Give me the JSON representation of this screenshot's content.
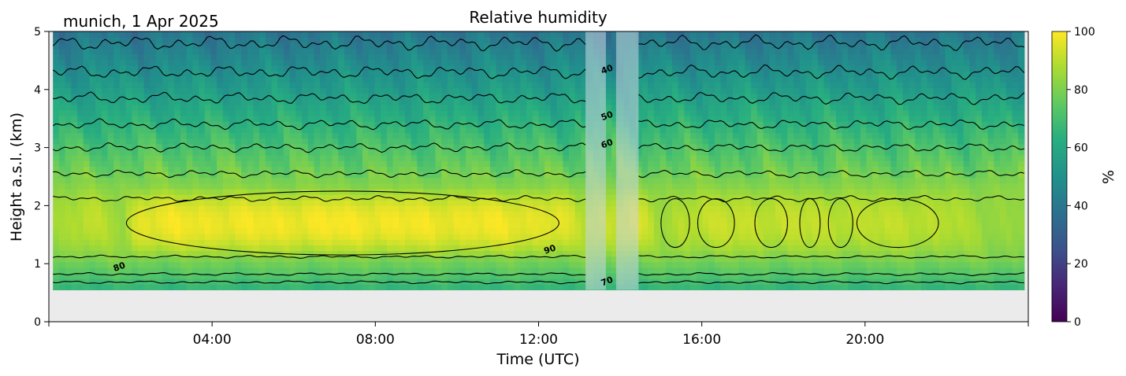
{
  "chart_data": {
    "type": "heatmap",
    "title": "Relative humidity",
    "subtitle": "munich, 1 Apr 2025",
    "xlabel": "Time (UTC)",
    "ylabel": "Height a.s.l. (km)",
    "x_unit": "hours UTC",
    "xlim": [
      0,
      24
    ],
    "ylim": [
      0,
      5
    ],
    "xticks": [
      4,
      8,
      12,
      16,
      20
    ],
    "xtick_labels": [
      "04:00",
      "08:00",
      "12:00",
      "16:00",
      "20:00"
    ],
    "yticks": [
      0,
      1,
      2,
      3,
      4,
      5
    ],
    "ytick_labels": [
      "0",
      "1",
      "2",
      "3",
      "4",
      "5"
    ],
    "colorbar": {
      "label": "%",
      "range": [
        0,
        100
      ],
      "ticks": [
        0,
        20,
        40,
        60,
        80,
        100
      ],
      "tick_labels": [
        "0",
        "20",
        "40",
        "60",
        "80",
        "100"
      ],
      "colormap": "viridis"
    },
    "data_height_range_km": [
      0.55,
      5
    ],
    "data_time_range_h": [
      0.1,
      23.9
    ],
    "no_data_below_km": 0.55,
    "flagged_intervals_h": [
      [
        13.15,
        13.65
      ],
      [
        13.9,
        14.45
      ]
    ],
    "rh_contours": [
      {
        "label": "80",
        "top_base_km": 2.12,
        "bottom_base_km": 1.12
      },
      {
        "label": "70",
        "top_base_km": 2.55,
        "bottom_base_km": 0.82
      },
      {
        "label": "60",
        "top_base_km": 3.0,
        "bottom_base_km": 0.68
      },
      {
        "label": "50",
        "top_base_km": 3.4
      },
      {
        "label": "40",
        "top_base_km": 3.85
      },
      {
        "top_base_km": 4.3
      },
      {
        "top_base_km": 4.8
      }
    ],
    "contour_labels": [
      {
        "text": "40",
        "x": 13.7,
        "y": 4.3
      },
      {
        "text": "50",
        "x": 13.7,
        "y": 3.5
      },
      {
        "text": "60",
        "x": 13.7,
        "y": 3.02
      },
      {
        "text": "90",
        "x": 12.3,
        "y": 1.2
      },
      {
        "text": "80",
        "x": 1.75,
        "y": 0.9
      },
      {
        "text": "70",
        "x": 13.7,
        "y": 0.65
      }
    ],
    "moist_layer": {
      "center_km": 1.7,
      "half_depth_km": 0.62,
      "rh_time_series_h": [
        0,
        0.5,
        1,
        1.5,
        1.8,
        2.2,
        3,
        5,
        7.5,
        9,
        11,
        12.6,
        13,
        13.8,
        14.3,
        14.6,
        15,
        15.5,
        16,
        17,
        18,
        19,
        20,
        21,
        22,
        23,
        24
      ],
      "rh_time_series_pct": [
        86,
        88,
        91,
        87,
        85,
        97,
        98,
        98,
        99,
        98,
        98,
        96,
        90,
        92,
        95,
        92,
        85,
        90,
        91,
        92,
        91,
        91,
        90,
        91,
        89,
        85,
        84
      ]
    }
  }
}
